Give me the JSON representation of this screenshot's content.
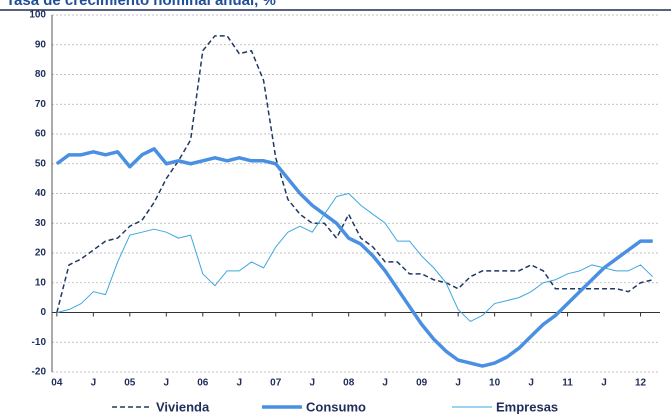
{
  "chart_data": {
    "type": "line",
    "title": "Tasa de crecimiento nominal anual, %",
    "x": [
      0,
      2,
      4,
      6,
      8,
      10,
      12,
      14,
      16,
      18,
      20,
      22,
      24,
      26,
      28,
      30,
      32,
      34,
      36,
      38,
      40,
      42,
      44,
      46,
      48,
      50,
      52,
      54,
      56,
      58,
      60,
      62,
      64,
      66,
      68,
      70,
      72,
      74,
      76,
      78,
      80,
      82,
      84,
      86,
      88,
      90,
      92,
      94,
      96,
      98
    ],
    "xlim": [
      -0.8,
      99.2
    ],
    "xticks": [
      {
        "value": 0,
        "label": "04"
      },
      {
        "value": 6,
        "label": "J"
      },
      {
        "value": 12,
        "label": "05"
      },
      {
        "value": 18,
        "label": "J"
      },
      {
        "value": 24,
        "label": "06"
      },
      {
        "value": 30,
        "label": "J"
      },
      {
        "value": 36,
        "label": "07"
      },
      {
        "value": 42,
        "label": "J"
      },
      {
        "value": 48,
        "label": "08"
      },
      {
        "value": 54,
        "label": "J"
      },
      {
        "value": 60,
        "label": "09"
      },
      {
        "value": 66,
        "label": "J"
      },
      {
        "value": 72,
        "label": "10"
      },
      {
        "value": 78,
        "label": "J"
      },
      {
        "value": 84,
        "label": "11"
      },
      {
        "value": 90,
        "label": "J"
      },
      {
        "value": 96,
        "label": "12"
      }
    ],
    "ylim": [
      -20,
      100
    ],
    "yticks": [
      -20,
      -10,
      0,
      10,
      20,
      30,
      40,
      50,
      60,
      70,
      80,
      90,
      100
    ],
    "grid": true,
    "legend": "bottom",
    "series": [
      {
        "name": "Vivienda",
        "color": "#1f3864",
        "dash": true,
        "values": [
          0,
          16,
          18,
          21,
          24,
          25,
          29,
          31,
          37,
          45,
          51,
          58,
          88,
          93,
          93,
          87,
          88,
          78,
          52,
          38,
          33,
          30,
          30,
          25,
          33,
          25,
          22,
          17,
          17,
          13,
          13,
          11,
          10,
          8,
          12,
          14,
          14,
          14,
          14,
          16,
          14,
          8,
          8,
          8,
          8,
          8,
          8,
          7,
          10,
          11
        ]
      },
      {
        "name": "Consumo",
        "color": "#4a90e2",
        "width": 3.5,
        "values": [
          50,
          53,
          53,
          54,
          53,
          54,
          49,
          53,
          55,
          50,
          51,
          50,
          51,
          52,
          51,
          52,
          51,
          51,
          50,
          45,
          40,
          36,
          33,
          30,
          25,
          23,
          19,
          14,
          8,
          2,
          -4,
          -9,
          -13,
          -16,
          -17,
          -18,
          -17,
          -15,
          -12,
          -8,
          -4,
          -1,
          3,
          7,
          11,
          15,
          18,
          21,
          24,
          24
        ]
      },
      {
        "name": "Empresas",
        "color": "#3ea7e0",
        "width": 1,
        "values": [
          0,
          1,
          3,
          7,
          6,
          17,
          26,
          27,
          28,
          27,
          25,
          26,
          13,
          9,
          14,
          14,
          17,
          15,
          22,
          27,
          29,
          27,
          33,
          39,
          40,
          36,
          33,
          30,
          24,
          24,
          19,
          15,
          10,
          1,
          -3,
          -1,
          3,
          4,
          5,
          7,
          10,
          11,
          13,
          14,
          16,
          15,
          14,
          14,
          16,
          12
        ]
      }
    ]
  }
}
